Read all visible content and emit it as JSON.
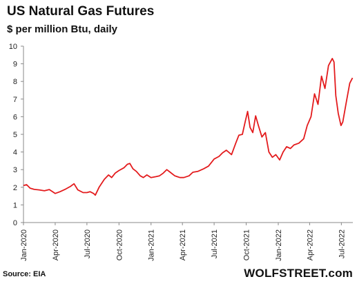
{
  "header": {
    "title": "US Natural Gas Futures",
    "subtitle": "$ per million Btu, daily"
  },
  "footer": {
    "source": "Source: EIA",
    "brand": "WOLFSTREET.com"
  },
  "chart_data": {
    "type": "line",
    "title": "US Natural Gas Futures",
    "subtitle": "$ per million Btu, daily",
    "xlabel": "",
    "ylabel": "",
    "ylim": [
      0,
      10
    ],
    "yticks": [
      0,
      1,
      2,
      3,
      4,
      5,
      6,
      7,
      8,
      9,
      10
    ],
    "xlim": [
      "2020-01-01",
      "2022-08-03"
    ],
    "xticks": [
      "Jan-2020",
      "Apr-2020",
      "Jul-2020",
      "Oct-2020",
      "Jan-2021",
      "Apr-2021",
      "Jul-2021",
      "Oct-2021",
      "Jan-2022",
      "Apr-2022",
      "Jul-2022"
    ],
    "grid": false,
    "colors": {
      "line": "#e31a1c",
      "axis": "#888888"
    },
    "series": [
      {
        "points": [
          [
            "2020-01-01",
            2.1
          ],
          [
            "2020-01-10",
            2.15
          ],
          [
            "2020-01-20",
            1.95
          ],
          [
            "2020-02-01",
            1.88
          ],
          [
            "2020-02-15",
            1.85
          ],
          [
            "2020-03-01",
            1.8
          ],
          [
            "2020-03-15",
            1.87
          ],
          [
            "2020-04-01",
            1.65
          ],
          [
            "2020-04-15",
            1.75
          ],
          [
            "2020-05-01",
            1.9
          ],
          [
            "2020-05-15",
            2.05
          ],
          [
            "2020-05-25",
            2.2
          ],
          [
            "2020-06-05",
            1.85
          ],
          [
            "2020-06-20",
            1.7
          ],
          [
            "2020-07-01",
            1.7
          ],
          [
            "2020-07-10",
            1.75
          ],
          [
            "2020-07-20",
            1.65
          ],
          [
            "2020-07-25",
            1.55
          ],
          [
            "2020-08-05",
            2.0
          ],
          [
            "2020-08-20",
            2.45
          ],
          [
            "2020-09-01",
            2.7
          ],
          [
            "2020-09-10",
            2.55
          ],
          [
            "2020-09-20",
            2.8
          ],
          [
            "2020-10-01",
            2.95
          ],
          [
            "2020-10-15",
            3.1
          ],
          [
            "2020-10-25",
            3.3
          ],
          [
            "2020-11-01",
            3.35
          ],
          [
            "2020-11-10",
            3.05
          ],
          [
            "2020-11-20",
            2.9
          ],
          [
            "2020-12-01",
            2.65
          ],
          [
            "2020-12-10",
            2.55
          ],
          [
            "2020-12-20",
            2.7
          ],
          [
            "2021-01-01",
            2.55
          ],
          [
            "2021-01-15",
            2.6
          ],
          [
            "2021-01-25",
            2.65
          ],
          [
            "2021-02-05",
            2.8
          ],
          [
            "2021-02-15",
            3.0
          ],
          [
            "2021-02-25",
            2.85
          ],
          [
            "2021-03-10",
            2.65
          ],
          [
            "2021-03-25",
            2.55
          ],
          [
            "2021-04-05",
            2.55
          ],
          [
            "2021-04-20",
            2.65
          ],
          [
            "2021-05-01",
            2.85
          ],
          [
            "2021-05-15",
            2.9
          ],
          [
            "2021-06-01",
            3.05
          ],
          [
            "2021-06-15",
            3.2
          ],
          [
            "2021-07-01",
            3.6
          ],
          [
            "2021-07-15",
            3.75
          ],
          [
            "2021-07-25",
            3.95
          ],
          [
            "2021-08-05",
            4.1
          ],
          [
            "2021-08-20",
            3.85
          ],
          [
            "2021-09-01",
            4.5
          ],
          [
            "2021-09-10",
            4.95
          ],
          [
            "2021-09-20",
            5.0
          ],
          [
            "2021-09-28",
            5.7
          ],
          [
            "2021-10-05",
            6.3
          ],
          [
            "2021-10-12",
            5.4
          ],
          [
            "2021-10-20",
            5.1
          ],
          [
            "2021-10-28",
            6.05
          ],
          [
            "2021-11-05",
            5.5
          ],
          [
            "2021-11-15",
            4.85
          ],
          [
            "2021-11-25",
            5.1
          ],
          [
            "2021-12-05",
            4.0
          ],
          [
            "2021-12-15",
            3.7
          ],
          [
            "2021-12-25",
            3.85
          ],
          [
            "2022-01-05",
            3.55
          ],
          [
            "2022-01-15",
            4.0
          ],
          [
            "2022-01-25",
            4.3
          ],
          [
            "2022-02-05",
            4.2
          ],
          [
            "2022-02-15",
            4.4
          ],
          [
            "2022-03-01",
            4.5
          ],
          [
            "2022-03-15",
            4.75
          ],
          [
            "2022-03-25",
            5.5
          ],
          [
            "2022-04-05",
            6.0
          ],
          [
            "2022-04-15",
            7.3
          ],
          [
            "2022-04-25",
            6.7
          ],
          [
            "2022-05-05",
            8.3
          ],
          [
            "2022-05-15",
            7.6
          ],
          [
            "2022-05-25",
            8.9
          ],
          [
            "2022-06-05",
            9.3
          ],
          [
            "2022-06-10",
            9.1
          ],
          [
            "2022-06-15",
            7.2
          ],
          [
            "2022-06-22",
            6.2
          ],
          [
            "2022-06-30",
            5.5
          ],
          [
            "2022-07-05",
            5.7
          ],
          [
            "2022-07-15",
            6.8
          ],
          [
            "2022-07-25",
            7.9
          ],
          [
            "2022-08-02",
            8.2
          ]
        ]
      }
    ]
  }
}
